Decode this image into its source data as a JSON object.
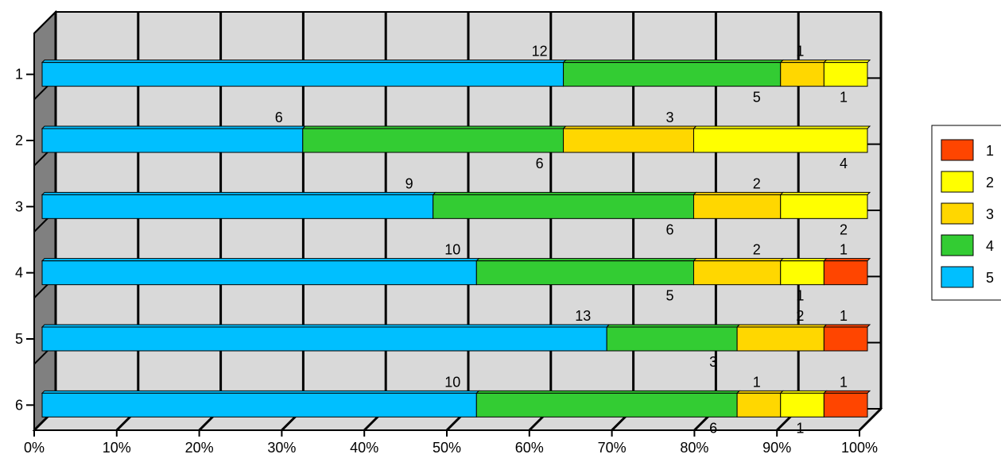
{
  "chart_data": {
    "type": "bar",
    "orientation": "horizontal",
    "stacked": "percent",
    "three_d": true,
    "categories": [
      "1",
      "2",
      "3",
      "4",
      "5",
      "6"
    ],
    "x_ticks": [
      "0%",
      "10%",
      "20%",
      "30%",
      "40%",
      "50%",
      "60%",
      "70%",
      "80%",
      "90%",
      "100%"
    ],
    "xlim": [
      0,
      100
    ],
    "grid": true,
    "legend_position": "right",
    "series": [
      {
        "name": "5",
        "color": "#00BFFF",
        "values": [
          12,
          6,
          9,
          10,
          13,
          10
        ]
      },
      {
        "name": "4",
        "color": "#33CC33",
        "values": [
          5,
          6,
          6,
          5,
          3,
          6
        ]
      },
      {
        "name": "3",
        "color": "#FFD700",
        "values": [
          1,
          3,
          2,
          2,
          2,
          1
        ]
      },
      {
        "name": "2",
        "color": "#FFFF00",
        "values": [
          1,
          4,
          2,
          1,
          0,
          1
        ]
      },
      {
        "name": "1",
        "color": "#FF4500",
        "values": [
          0,
          0,
          0,
          1,
          1,
          1
        ]
      }
    ],
    "legend": [
      {
        "label": "1",
        "color": "#FF4500"
      },
      {
        "label": "2",
        "color": "#FFFF00"
      },
      {
        "label": "3",
        "color": "#FFD700"
      },
      {
        "label": "4",
        "color": "#33CC33"
      },
      {
        "label": "5",
        "color": "#00BFFF"
      }
    ]
  }
}
